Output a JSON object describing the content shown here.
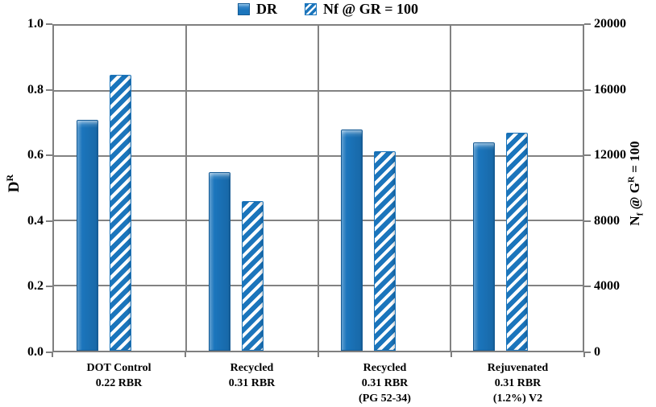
{
  "legend": {
    "items": [
      {
        "label": "DR",
        "pattern": "solid"
      },
      {
        "label": "Nf @ GR = 100",
        "pattern": "hatched"
      }
    ]
  },
  "axes": {
    "left_title_base": "D",
    "left_title_sup": "R",
    "right_title_base": "N",
    "right_title_sub": "f",
    "right_title_mid": " @ G",
    "right_title_sup": "R",
    "right_title_end": " = 100"
  },
  "chart_data": {
    "type": "bar",
    "categories": [
      "DOT Control\n0.22 RBR",
      "Recycled\n0.31 RBR",
      "Recycled\n0.31 RBR\n(PG 52-34)",
      "Rejuvenated\n0.31 RBR\n(1.2%) V2"
    ],
    "series": [
      {
        "name": "DR",
        "axis": "left",
        "pattern": "solid",
        "values": [
          0.71,
          0.55,
          0.68,
          0.64
        ]
      },
      {
        "name": "Nf @ GR = 100",
        "axis": "right",
        "pattern": "hatched",
        "values": [
          17000,
          9200,
          12300,
          13400
        ]
      }
    ],
    "left_axis": {
      "title": "DR",
      "min": 0,
      "max": 1.0,
      "tick_values": [
        0.0,
        0.2,
        0.4,
        0.6,
        0.8,
        1.0
      ],
      "tick_labels": [
        "0.0",
        "0.2",
        "0.4",
        "0.6",
        "0.8",
        "1.0"
      ]
    },
    "right_axis": {
      "title": "Nf @ GR = 100",
      "min": 0,
      "max": 20000,
      "tick_values": [
        0,
        4000,
        8000,
        12000,
        16000,
        20000
      ],
      "tick_labels": [
        "0",
        "4000",
        "8000",
        "12000",
        "16000",
        "20000"
      ]
    },
    "grid": true,
    "legend_position": "top",
    "colors": {
      "bar_fill": "#1B75BC",
      "bar_edge": "#155A94",
      "gridline": "#7F7F7F",
      "text": "#000000",
      "background": "#FFFFFF"
    }
  }
}
